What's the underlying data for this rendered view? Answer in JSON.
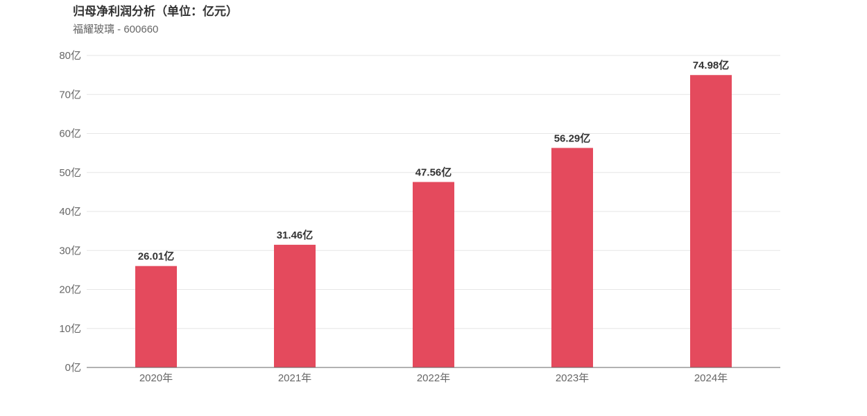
{
  "header": {
    "title": "归母净利润分析（单位：亿元）",
    "subtitle": "福耀玻璃 - 600660"
  },
  "chart_data": {
    "type": "bar",
    "title": "归母净利润分析（单位：亿元）",
    "subtitle": "福耀玻璃 - 600660",
    "categories": [
      "2020年",
      "2021年",
      "2022年",
      "2023年",
      "2024年"
    ],
    "values": [
      26.01,
      31.46,
      47.56,
      56.29,
      74.98
    ],
    "data_labels": [
      "26.01亿",
      "31.46亿",
      "47.56亿",
      "56.29亿",
      "74.98亿"
    ],
    "y_ticks": [
      0,
      10,
      20,
      30,
      40,
      50,
      60,
      70,
      80
    ],
    "y_tick_labels": [
      "0亿",
      "10亿",
      "20亿",
      "30亿",
      "40亿",
      "50亿",
      "60亿",
      "70亿",
      "80亿"
    ],
    "ylim": [
      0,
      80
    ],
    "xlabel": "",
    "ylabel": "",
    "grid": true,
    "legend": "none",
    "bar_color": "#e44a5d",
    "grid_color": "#e6e6e6",
    "axis_color": "#666666"
  }
}
